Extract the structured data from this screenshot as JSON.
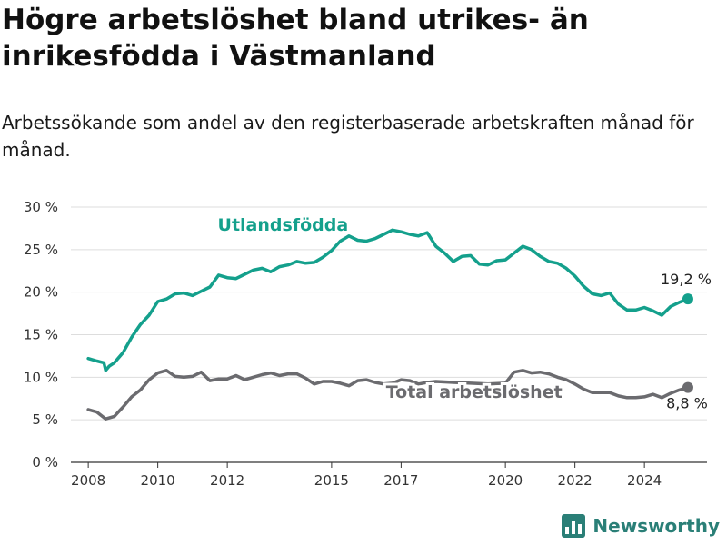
{
  "header": {
    "title": "Högre arbetslöshet bland utrikes- än inrikesfödda i Västmanland",
    "subtitle": "Arbetssökande som andel av den registerbaserade arbetskraften månad för månad."
  },
  "brand": {
    "name": "Newsworthy",
    "icon": "bar-chart-icon",
    "color": "#2a7f77"
  },
  "chart_data": {
    "type": "line",
    "title": "Högre arbetslöshet bland utrikes- än inrikesfödda i Västmanland",
    "subtitle": "Arbetssökande som andel av den registerbaserade arbetskraften månad för månad.",
    "xlabel": "",
    "ylabel": "",
    "xlim": [
      2007.5,
      2025.8
    ],
    "ylim": [
      0,
      30
    ],
    "x_ticks": [
      2008,
      2010,
      2012,
      2015,
      2017,
      2020,
      2022,
      2024
    ],
    "y_ticks": [
      0,
      5,
      10,
      15,
      20,
      25,
      30
    ],
    "y_tick_labels": [
      "0 %",
      "5 %",
      "10 %",
      "15 %",
      "20 %",
      "25 %",
      "30 %"
    ],
    "grid": "horizontal",
    "legend": "inline labels",
    "series": [
      {
        "name": "Utlandsfödda",
        "color": "#14a08c",
        "end_label": "19,2 %",
        "points": [
          [
            2008.0,
            12.2
          ],
          [
            2008.25,
            11.9
          ],
          [
            2008.45,
            11.7
          ],
          [
            2008.5,
            10.8
          ],
          [
            2008.6,
            11.3
          ],
          [
            2008.75,
            11.7
          ],
          [
            2009.0,
            12.9
          ],
          [
            2009.25,
            14.7
          ],
          [
            2009.5,
            16.2
          ],
          [
            2009.75,
            17.3
          ],
          [
            2010.0,
            18.9
          ],
          [
            2010.25,
            19.2
          ],
          [
            2010.5,
            19.8
          ],
          [
            2010.75,
            19.9
          ],
          [
            2011.0,
            19.6
          ],
          [
            2011.25,
            20.1
          ],
          [
            2011.5,
            20.6
          ],
          [
            2011.75,
            22.0
          ],
          [
            2012.0,
            21.7
          ],
          [
            2012.25,
            21.6
          ],
          [
            2012.5,
            22.1
          ],
          [
            2012.75,
            22.6
          ],
          [
            2013.0,
            22.8
          ],
          [
            2013.25,
            22.4
          ],
          [
            2013.5,
            23.0
          ],
          [
            2013.75,
            23.2
          ],
          [
            2014.0,
            23.6
          ],
          [
            2014.25,
            23.4
          ],
          [
            2014.5,
            23.5
          ],
          [
            2014.75,
            24.1
          ],
          [
            2015.0,
            24.9
          ],
          [
            2015.25,
            26.0
          ],
          [
            2015.5,
            26.6
          ],
          [
            2015.75,
            26.1
          ],
          [
            2016.0,
            26.0
          ],
          [
            2016.25,
            26.3
          ],
          [
            2016.5,
            26.8
          ],
          [
            2016.75,
            27.3
          ],
          [
            2017.0,
            27.1
          ],
          [
            2017.25,
            26.8
          ],
          [
            2017.5,
            26.6
          ],
          [
            2017.75,
            27.0
          ],
          [
            2018.0,
            25.4
          ],
          [
            2018.25,
            24.6
          ],
          [
            2018.5,
            23.6
          ],
          [
            2018.75,
            24.2
          ],
          [
            2019.0,
            24.3
          ],
          [
            2019.25,
            23.3
          ],
          [
            2019.5,
            23.2
          ],
          [
            2019.75,
            23.7
          ],
          [
            2020.0,
            23.8
          ],
          [
            2020.25,
            24.6
          ],
          [
            2020.5,
            25.4
          ],
          [
            2020.75,
            25.0
          ],
          [
            2021.0,
            24.2
          ],
          [
            2021.25,
            23.6
          ],
          [
            2021.5,
            23.4
          ],
          [
            2021.75,
            22.8
          ],
          [
            2022.0,
            21.9
          ],
          [
            2022.25,
            20.7
          ],
          [
            2022.5,
            19.8
          ],
          [
            2022.75,
            19.6
          ],
          [
            2023.0,
            19.9
          ],
          [
            2023.25,
            18.6
          ],
          [
            2023.5,
            17.9
          ],
          [
            2023.75,
            17.9
          ],
          [
            2024.0,
            18.2
          ],
          [
            2024.25,
            17.8
          ],
          [
            2024.5,
            17.3
          ],
          [
            2024.75,
            18.3
          ],
          [
            2025.0,
            18.8
          ],
          [
            2025.25,
            19.2
          ]
        ]
      },
      {
        "name": "Total arbetslöshet",
        "color": "#6b6b6f",
        "end_label": "8,8 %",
        "points": [
          [
            2008.0,
            6.2
          ],
          [
            2008.25,
            5.9
          ],
          [
            2008.5,
            5.1
          ],
          [
            2008.75,
            5.4
          ],
          [
            2009.0,
            6.5
          ],
          [
            2009.25,
            7.7
          ],
          [
            2009.5,
            8.5
          ],
          [
            2009.75,
            9.7
          ],
          [
            2010.0,
            10.5
          ],
          [
            2010.25,
            10.8
          ],
          [
            2010.5,
            10.1
          ],
          [
            2010.75,
            10.0
          ],
          [
            2011.0,
            10.1
          ],
          [
            2011.25,
            10.6
          ],
          [
            2011.5,
            9.6
          ],
          [
            2011.75,
            9.8
          ],
          [
            2012.0,
            9.8
          ],
          [
            2012.25,
            10.2
          ],
          [
            2012.5,
            9.7
          ],
          [
            2012.75,
            10.0
          ],
          [
            2013.0,
            10.3
          ],
          [
            2013.25,
            10.5
          ],
          [
            2013.5,
            10.2
          ],
          [
            2013.75,
            10.4
          ],
          [
            2014.0,
            10.4
          ],
          [
            2014.25,
            9.9
          ],
          [
            2014.5,
            9.2
          ],
          [
            2014.75,
            9.5
          ],
          [
            2015.0,
            9.5
          ],
          [
            2015.25,
            9.3
          ],
          [
            2015.5,
            9.0
          ],
          [
            2015.75,
            9.6
          ],
          [
            2016.0,
            9.7
          ],
          [
            2016.25,
            9.4
          ],
          [
            2016.5,
            9.2
          ],
          [
            2016.75,
            9.3
          ],
          [
            2017.0,
            9.7
          ],
          [
            2017.25,
            9.6
          ],
          [
            2017.5,
            9.2
          ],
          [
            2017.75,
            9.4
          ],
          [
            2018.0,
            9.5
          ],
          [
            2018.5,
            9.4
          ],
          [
            2019.0,
            9.3
          ],
          [
            2019.5,
            9.2
          ],
          [
            2020.0,
            9.3
          ],
          [
            2020.25,
            10.6
          ],
          [
            2020.5,
            10.8
          ],
          [
            2020.75,
            10.5
          ],
          [
            2021.0,
            10.6
          ],
          [
            2021.25,
            10.4
          ],
          [
            2021.5,
            10.0
          ],
          [
            2021.75,
            9.7
          ],
          [
            2022.0,
            9.2
          ],
          [
            2022.25,
            8.6
          ],
          [
            2022.5,
            8.2
          ],
          [
            2022.75,
            8.2
          ],
          [
            2023.0,
            8.2
          ],
          [
            2023.25,
            7.8
          ],
          [
            2023.5,
            7.6
          ],
          [
            2023.75,
            7.6
          ],
          [
            2024.0,
            7.7
          ],
          [
            2024.25,
            8.0
          ],
          [
            2024.5,
            7.6
          ],
          [
            2024.75,
            8.1
          ],
          [
            2025.0,
            8.5
          ],
          [
            2025.25,
            8.8
          ]
        ]
      }
    ]
  }
}
